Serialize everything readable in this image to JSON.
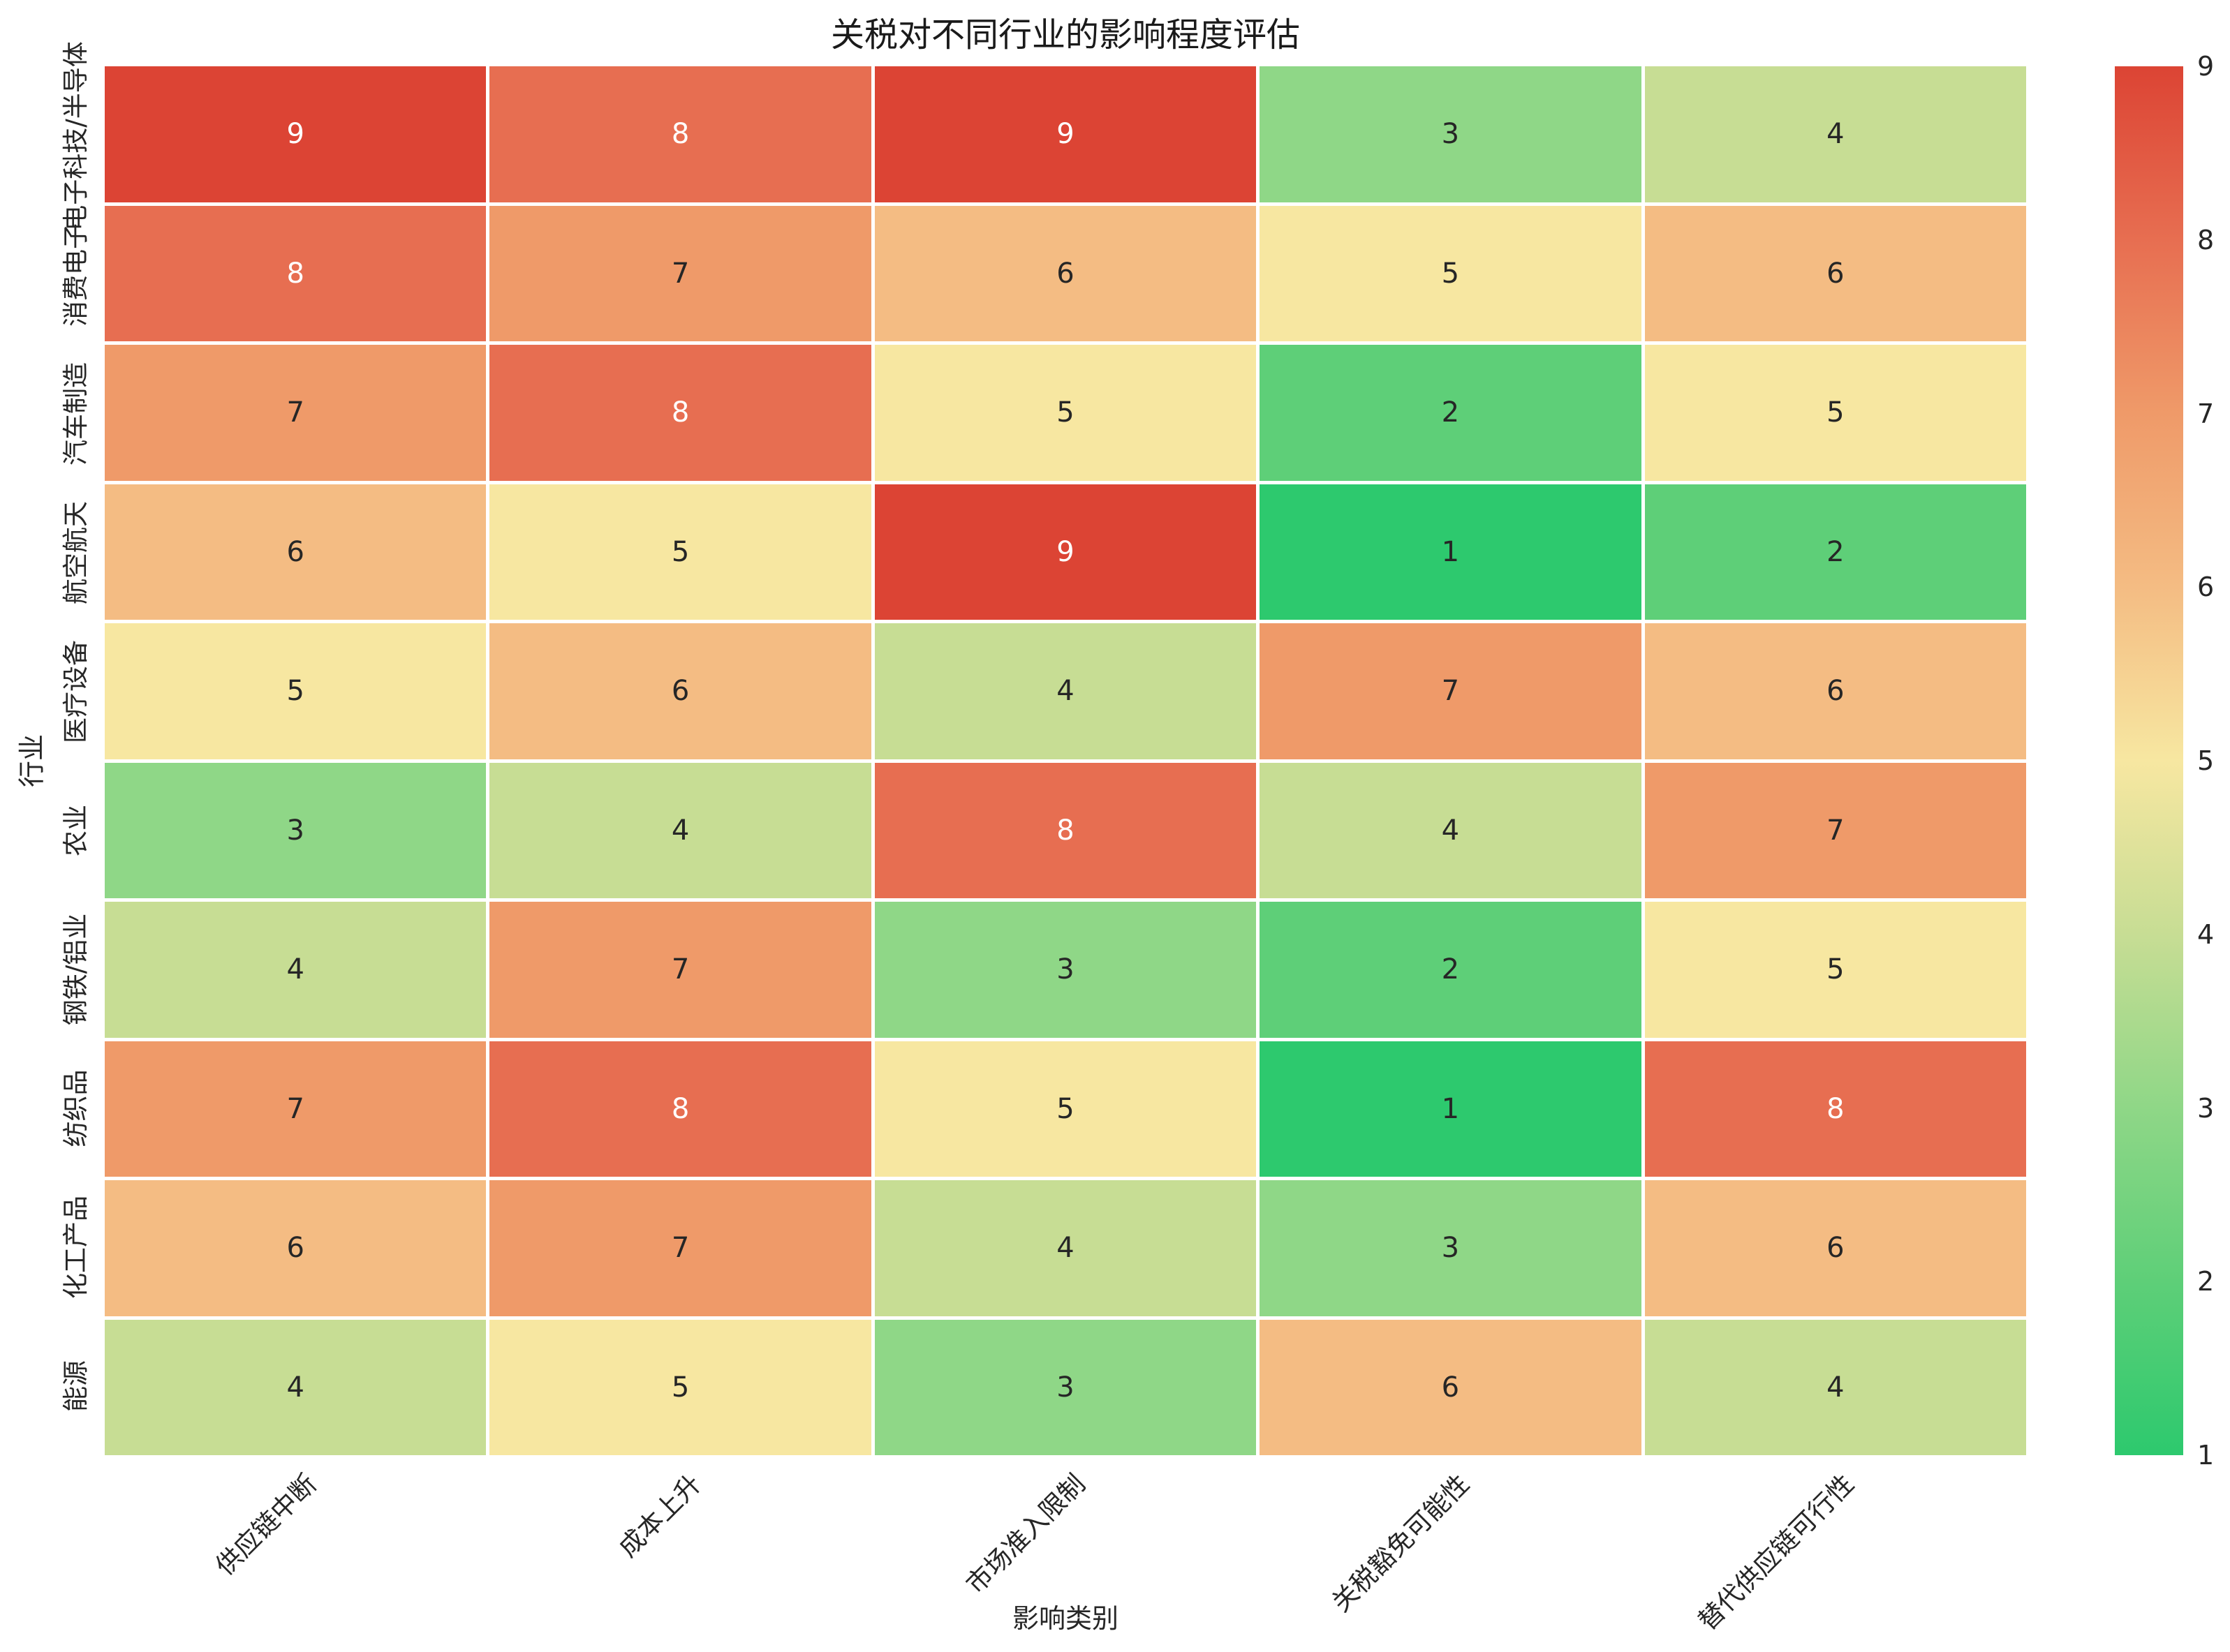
{
  "chart_data": {
    "type": "heatmap",
    "title": "关税对不同行业的影响程度评估",
    "xlabel": "影响类别",
    "ylabel": "行业",
    "columns": [
      "供应链中断",
      "成本上升",
      "市场准入限制",
      "关税豁免可能性",
      "替代供应链可行性"
    ],
    "rows": [
      "电子科技/半导体",
      "消费电子",
      "汽车制造",
      "航空航天",
      "医疗设备",
      "农业",
      "钢铁/铝业",
      "纺织品",
      "化工产品",
      "能源"
    ],
    "values": [
      [
        9,
        8,
        9,
        3,
        4
      ],
      [
        8,
        7,
        6,
        5,
        6
      ],
      [
        7,
        8,
        5,
        2,
        5
      ],
      [
        6,
        5,
        9,
        1,
        2
      ],
      [
        5,
        6,
        4,
        7,
        6
      ],
      [
        3,
        4,
        8,
        4,
        7
      ],
      [
        4,
        7,
        3,
        2,
        5
      ],
      [
        7,
        8,
        5,
        1,
        8
      ],
      [
        6,
        7,
        4,
        3,
        6
      ],
      [
        4,
        5,
        3,
        6,
        4
      ]
    ],
    "vmin": 1,
    "vmax": 9,
    "colorbar_ticks": [
      9,
      8,
      7,
      6,
      5,
      4,
      3,
      2,
      1
    ],
    "palette": {
      "1": "#2dc96e",
      "2": "#5ecf78",
      "3": "#8fd787",
      "4": "#c7dd94",
      "5": "#f7e7a1",
      "6": "#f4bc83",
      "7": "#ef9a69",
      "8": "#e76e51",
      "9": "#dc4434"
    },
    "annot_dark_color": "#262626",
    "annot_light_color": "#ffffff",
    "annot_light_text_min": 8,
    "legend_position": "right-colorbar",
    "grid": false,
    "gridline_color": "#ffffff"
  }
}
